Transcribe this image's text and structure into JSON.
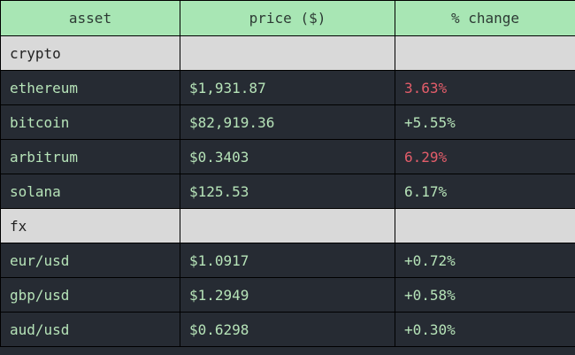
{
  "table": {
    "headers": [
      "asset",
      "price ($)",
      "% change"
    ],
    "colors": {
      "header_bg": "#a8e6b4",
      "section_bg": "#d9d9d9",
      "row_bg": "#262b33",
      "text_green": "#b6e3b8",
      "text_red": "#e35d6a"
    },
    "sections": [
      {
        "label": "crypto",
        "rows": [
          {
            "asset": "ethereum",
            "price": "$1,931.87",
            "change": "3.63%",
            "direction": "negative"
          },
          {
            "asset": "bitcoin",
            "price": "$82,919.36",
            "change": "+5.55%",
            "direction": "positive"
          },
          {
            "asset": "arbitrum",
            "price": "$0.3403",
            "change": "6.29%",
            "direction": "negative"
          },
          {
            "asset": "solana",
            "price": "$125.53",
            "change": "6.17%",
            "direction": "positive"
          }
        ]
      },
      {
        "label": "fx",
        "rows": [
          {
            "asset": "eur/usd",
            "price": "$1.0917",
            "change": "+0.72%",
            "direction": "positive"
          },
          {
            "asset": "gbp/usd",
            "price": "$1.2949",
            "change": "+0.58%",
            "direction": "positive"
          },
          {
            "asset": "aud/usd",
            "price": "$0.6298",
            "change": "+0.30%",
            "direction": "positive"
          }
        ]
      }
    ]
  }
}
